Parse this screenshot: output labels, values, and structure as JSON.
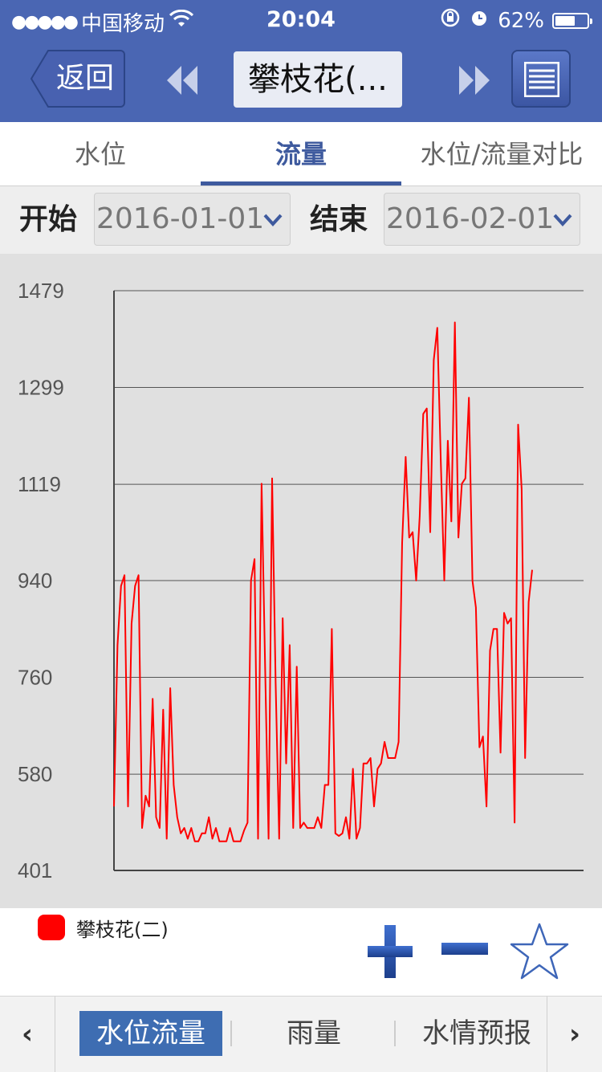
{
  "status_bar": {
    "signal_dots": "●●●●●",
    "carrier": "中国移动",
    "wifi_icon": "wifi-icon",
    "time": "20:04",
    "battery_percent": "62%",
    "battery_level": 0.62
  },
  "nav": {
    "back_label": "返回",
    "station_title": "攀枝花(...",
    "prev_icon": "double-left-arrow-icon",
    "next_icon": "double-right-arrow-icon",
    "list_icon": "list-icon"
  },
  "tabs": [
    {
      "label": "水位",
      "active": false
    },
    {
      "label": "流量",
      "active": true
    },
    {
      "label": "水位/流量对比",
      "active": false
    }
  ],
  "date_filter": {
    "start_label": "开始",
    "start_value": "2016-01-01",
    "end_label": "结束",
    "end_value": "2016-02-01"
  },
  "chart_data": {
    "type": "line",
    "ylim": [
      401,
      1479
    ],
    "yticks": [
      "1479",
      "1299",
      "1119",
      "940",
      "760",
      "580",
      "401"
    ],
    "grid": true,
    "series": [
      {
        "name": "攀枝花(二)",
        "color": "#ff0000",
        "values": [
          520,
          820,
          930,
          950,
          520,
          860,
          930,
          950,
          480,
          540,
          520,
          720,
          500,
          480,
          700,
          460,
          740,
          560,
          500,
          470,
          480,
          460,
          480,
          455,
          455,
          470,
          470,
          500,
          460,
          480,
          455,
          455,
          455,
          480,
          455,
          455,
          455,
          475,
          490,
          940,
          980,
          460,
          1120,
          780,
          460,
          1130,
          750,
          460,
          870,
          600,
          820,
          480,
          780,
          480,
          490,
          480,
          480,
          480,
          500,
          480,
          560,
          560,
          850,
          470,
          465,
          470,
          500,
          460,
          590,
          460,
          480,
          600,
          600,
          610,
          520,
          590,
          600,
          640,
          610,
          610,
          610,
          640,
          1010,
          1170,
          1020,
          1030,
          940,
          1060,
          1250,
          1260,
          1030,
          1350,
          1410,
          1160,
          940,
          1200,
          1050,
          1420,
          1020,
          1120,
          1130,
          1280,
          940,
          890,
          630,
          650,
          520,
          810,
          850,
          850,
          620,
          880,
          860,
          870,
          490,
          1230,
          1110,
          610,
          900,
          960
        ]
      }
    ],
    "legend_position": "bottom-left"
  },
  "legend": {
    "label": "攀枝花(二)",
    "color": "#ff0000"
  },
  "controls": {
    "zoom_in_icon": "plus-icon",
    "zoom_out_icon": "minus-icon",
    "favorite_icon": "star-outline-icon"
  },
  "bottom_nav": {
    "left_arrow": "‹",
    "right_arrow": "›",
    "items": [
      {
        "label": "水位流量",
        "active": true
      },
      {
        "label": "雨量",
        "active": false
      },
      {
        "label": "水情预报",
        "active": false
      }
    ]
  },
  "colors": {
    "header_bg": "#4a66b3",
    "accent": "#3e5a9e",
    "series": "#ff0000"
  }
}
